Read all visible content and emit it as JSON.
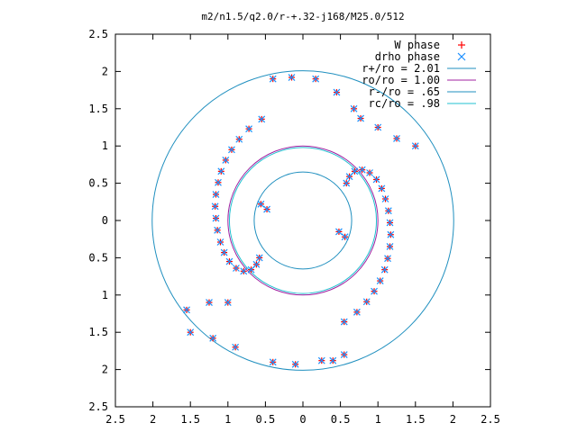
{
  "chart_data": {
    "type": "scatter",
    "title": "m2/n1.5/q2.0/r-+.32-j168/M25.0/512",
    "xlim": [
      -2.5,
      2.5
    ],
    "ylim": [
      -2.5,
      2.5
    ],
    "xticks": [
      -2.5,
      -2,
      -1.5,
      -1,
      -0.5,
      0,
      0.5,
      1,
      1.5,
      2,
      2.5
    ],
    "yticks": [
      -2.5,
      -2,
      -1.5,
      -1,
      -0.5,
      0,
      0.5,
      1,
      1.5,
      2,
      2.5
    ],
    "xtick_labels": [
      "2.5",
      "2",
      "1.5",
      "1",
      "0.5",
      "0",
      "0.5",
      "1",
      "1.5",
      "2",
      "2.5"
    ],
    "ytick_labels": [
      "2.5",
      "2",
      "1.5",
      "1",
      "0.5",
      "0",
      "0.5",
      "1",
      "1.5",
      "2",
      "2.5"
    ],
    "grid": false,
    "legend_position": "top-right",
    "series": [
      {
        "name": "W phase",
        "marker": "+",
        "color": "#ff0000",
        "points": [
          [
            -0.55,
            1.36
          ],
          [
            -0.72,
            1.23
          ],
          [
            -0.85,
            1.09
          ],
          [
            -0.95,
            0.95
          ],
          [
            -1.03,
            0.81
          ],
          [
            -1.09,
            0.66
          ],
          [
            -1.13,
            0.51
          ],
          [
            -1.16,
            0.35
          ],
          [
            -1.17,
            0.19
          ],
          [
            -1.16,
            0.03
          ],
          [
            -1.14,
            -0.13
          ],
          [
            -1.1,
            -0.29
          ],
          [
            -1.05,
            -0.43
          ],
          [
            -0.98,
            -0.55
          ],
          [
            -0.89,
            -0.64
          ],
          [
            -0.79,
            -0.68
          ],
          [
            -0.69,
            -0.66
          ],
          [
            -0.62,
            -0.59
          ],
          [
            -0.58,
            -0.5
          ],
          [
            -0.56,
            0.22
          ],
          [
            -0.48,
            0.15
          ],
          [
            0.55,
            -1.36
          ],
          [
            0.72,
            -1.23
          ],
          [
            0.85,
            -1.09
          ],
          [
            0.95,
            -0.95
          ],
          [
            1.03,
            -0.81
          ],
          [
            1.09,
            -0.66
          ],
          [
            1.13,
            -0.51
          ],
          [
            1.16,
            -0.35
          ],
          [
            1.17,
            -0.19
          ],
          [
            1.16,
            -0.03
          ],
          [
            1.14,
            0.13
          ],
          [
            1.1,
            0.29
          ],
          [
            1.05,
            0.43
          ],
          [
            0.98,
            0.55
          ],
          [
            0.89,
            0.64
          ],
          [
            0.79,
            0.68
          ],
          [
            0.69,
            0.66
          ],
          [
            0.62,
            0.59
          ],
          [
            0.58,
            0.5
          ],
          [
            0.56,
            -0.22
          ],
          [
            0.48,
            -0.15
          ],
          [
            -0.4,
            1.9
          ],
          [
            -0.15,
            1.92
          ],
          [
            0.17,
            1.9
          ],
          [
            0.45,
            1.72
          ],
          [
            0.68,
            1.5
          ],
          [
            0.77,
            1.37
          ],
          [
            1.0,
            1.25
          ],
          [
            1.25,
            1.1
          ],
          [
            1.5,
            1.0
          ],
          [
            -1.0,
            -1.1
          ],
          [
            -1.25,
            -1.1
          ],
          [
            -1.55,
            -1.2
          ],
          [
            -1.5,
            -1.5
          ],
          [
            -1.2,
            -1.58
          ],
          [
            -0.9,
            -1.7
          ],
          [
            -0.4,
            -1.9
          ],
          [
            -0.1,
            -1.93
          ],
          [
            0.25,
            -1.88
          ],
          [
            0.4,
            -1.88
          ],
          [
            0.55,
            -1.8
          ]
        ]
      },
      {
        "name": "drho phase",
        "marker": "x",
        "color": "#1e90ff",
        "points": [
          [
            -0.55,
            1.36
          ],
          [
            -0.72,
            1.23
          ],
          [
            -0.85,
            1.09
          ],
          [
            -0.95,
            0.95
          ],
          [
            -1.03,
            0.81
          ],
          [
            -1.09,
            0.66
          ],
          [
            -1.13,
            0.51
          ],
          [
            -1.16,
            0.35
          ],
          [
            -1.17,
            0.19
          ],
          [
            -1.16,
            0.03
          ],
          [
            -1.14,
            -0.13
          ],
          [
            -1.1,
            -0.29
          ],
          [
            -1.05,
            -0.43
          ],
          [
            -0.98,
            -0.55
          ],
          [
            -0.89,
            -0.64
          ],
          [
            -0.79,
            -0.68
          ],
          [
            -0.69,
            -0.66
          ],
          [
            -0.62,
            -0.59
          ],
          [
            -0.58,
            -0.5
          ],
          [
            -0.56,
            0.22
          ],
          [
            -0.48,
            0.15
          ],
          [
            0.55,
            -1.36
          ],
          [
            0.72,
            -1.23
          ],
          [
            0.85,
            -1.09
          ],
          [
            0.95,
            -0.95
          ],
          [
            1.03,
            -0.81
          ],
          [
            1.09,
            -0.66
          ],
          [
            1.13,
            -0.51
          ],
          [
            1.16,
            -0.35
          ],
          [
            1.17,
            -0.19
          ],
          [
            1.16,
            -0.03
          ],
          [
            1.14,
            0.13
          ],
          [
            1.1,
            0.29
          ],
          [
            1.05,
            0.43
          ],
          [
            0.98,
            0.55
          ],
          [
            0.89,
            0.64
          ],
          [
            0.79,
            0.68
          ],
          [
            0.69,
            0.66
          ],
          [
            0.62,
            0.59
          ],
          [
            0.58,
            0.5
          ],
          [
            0.56,
            -0.22
          ],
          [
            0.48,
            -0.15
          ],
          [
            -0.4,
            1.9
          ],
          [
            -0.15,
            1.92
          ],
          [
            0.17,
            1.9
          ],
          [
            0.45,
            1.72
          ],
          [
            0.68,
            1.5
          ],
          [
            0.77,
            1.37
          ],
          [
            1.0,
            1.25
          ],
          [
            1.25,
            1.1
          ],
          [
            1.5,
            1.0
          ],
          [
            -1.0,
            -1.1
          ],
          [
            -1.25,
            -1.1
          ],
          [
            -1.55,
            -1.2
          ],
          [
            -1.5,
            -1.5
          ],
          [
            -1.2,
            -1.58
          ],
          [
            -0.9,
            -1.7
          ],
          [
            -0.4,
            -1.9
          ],
          [
            -0.1,
            -1.93
          ],
          [
            0.25,
            -1.88
          ],
          [
            0.4,
            -1.88
          ],
          [
            0.55,
            -1.8
          ]
        ]
      },
      {
        "name": "r+/ro = 2.01",
        "type": "circle",
        "radius": 2.01,
        "color": "#1f8fbf"
      },
      {
        "name": "ro/ro = 1.00",
        "type": "circle",
        "radius": 1.0,
        "color": "#a020a0"
      },
      {
        "name": "r-/ro = .65",
        "type": "circle",
        "radius": 0.65,
        "color": "#1f8fbf"
      },
      {
        "name": "rc/ro = .98",
        "type": "circle",
        "radius": 0.98,
        "color": "#20c0d0"
      }
    ]
  }
}
